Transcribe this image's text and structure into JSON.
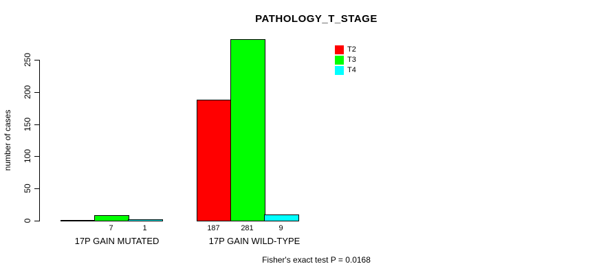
{
  "chart_data": {
    "type": "bar",
    "title": "PATHOLOGY_T_STAGE",
    "ylabel": "number of cases",
    "xlabel": "",
    "ylim": [
      0,
      267
    ],
    "yticks": [
      0,
      50,
      100,
      150,
      200,
      250
    ],
    "grid": false,
    "legend_position": "inside-top",
    "categories": [
      "17P GAIN MUTATED",
      "17P GAIN WILD-TYPE"
    ],
    "series": [
      {
        "name": "T2",
        "color": "#FF0000",
        "values": [
          0,
          187
        ],
        "bar_labels": [
          "",
          "187"
        ]
      },
      {
        "name": "T3",
        "color": "#00FF00",
        "values": [
          7,
          281
        ],
        "bar_labels": [
          "7",
          "281"
        ]
      },
      {
        "name": "T4",
        "color": "#00FFFF",
        "values": [
          1,
          9
        ],
        "bar_labels": [
          "1",
          "9"
        ]
      }
    ],
    "annotation": "Fisher's exact test P = 0.0168"
  }
}
